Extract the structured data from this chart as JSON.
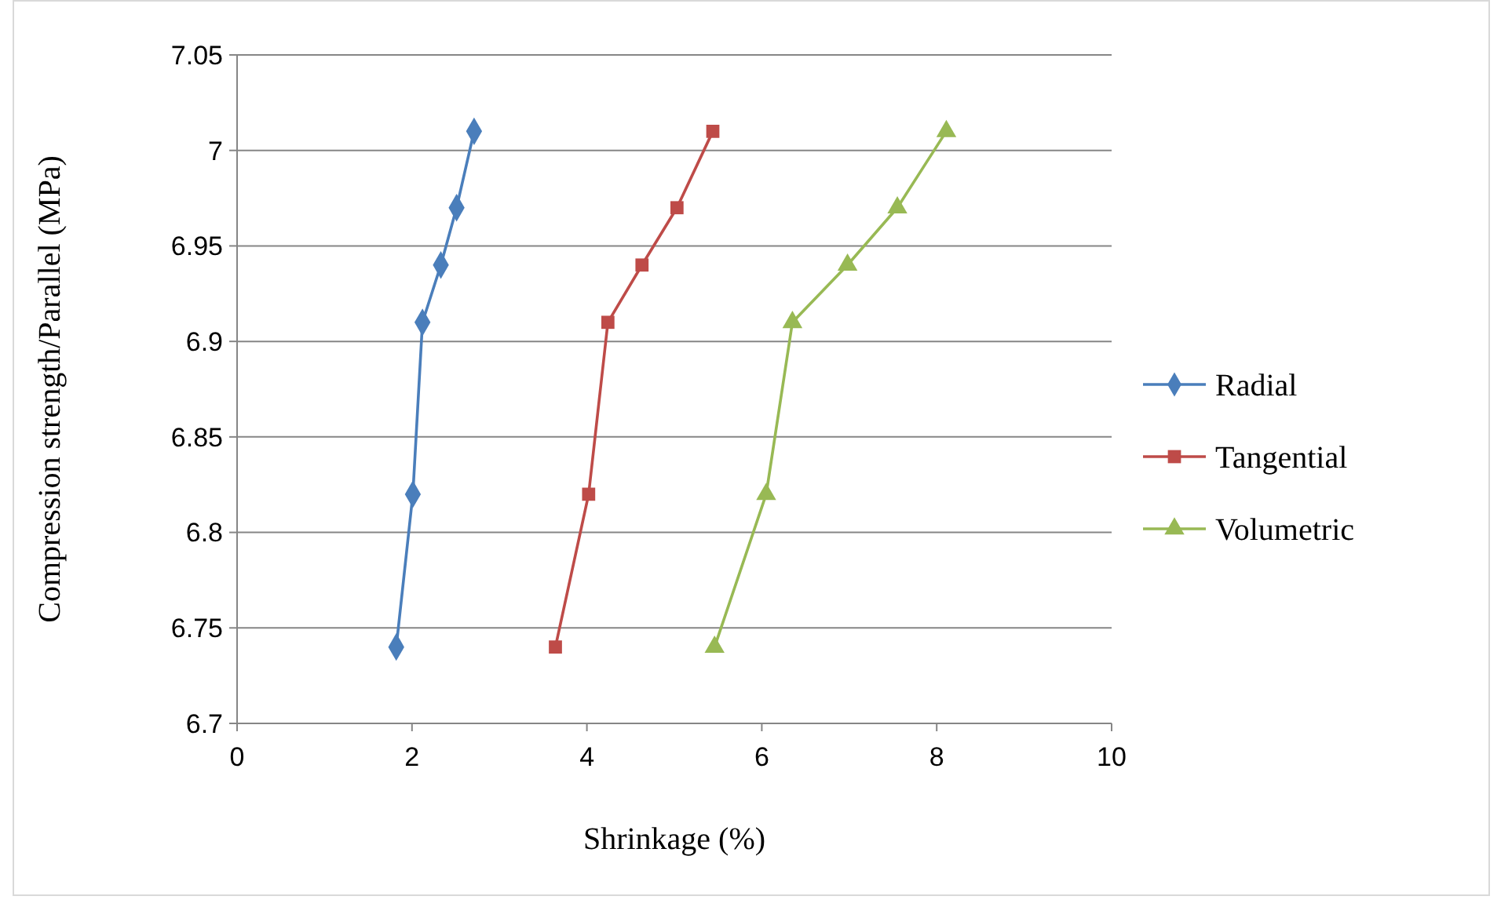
{
  "chart_data": {
    "type": "line",
    "xlabel": "Shrinkage (%)",
    "ylabel": "Compression strength/Parallel (MPa)",
    "xlim": [
      0,
      10
    ],
    "xticks": [
      0,
      2,
      4,
      6,
      8,
      10
    ],
    "ylim": [
      6.7,
      7.05
    ],
    "yticks": [
      6.7,
      6.75,
      6.8,
      6.85,
      6.9,
      6.95,
      7,
      7.05
    ],
    "grid": "y",
    "legend": "right",
    "line_style": "solid",
    "series": [
      {
        "name": "Radial",
        "color": "#4a7ebb",
        "marker": "diamond",
        "x": [
          1.82,
          2.01,
          2.12,
          2.33,
          2.51,
          2.71
        ],
        "values": [
          6.74,
          6.82,
          6.91,
          6.94,
          6.97,
          7.01
        ]
      },
      {
        "name": "Tangential",
        "color": "#be4b48",
        "marker": "square",
        "x": [
          3.64,
          4.02,
          4.24,
          4.63,
          5.03,
          5.44
        ],
        "values": [
          6.74,
          6.82,
          6.91,
          6.94,
          6.97,
          7.01
        ]
      },
      {
        "name": "Volumetric",
        "color": "#98b954",
        "marker": "triangle",
        "x": [
          5.46,
          6.05,
          6.35,
          6.98,
          7.55,
          8.11
        ],
        "values": [
          6.74,
          6.82,
          6.91,
          6.94,
          6.97,
          7.01
        ]
      }
    ]
  }
}
